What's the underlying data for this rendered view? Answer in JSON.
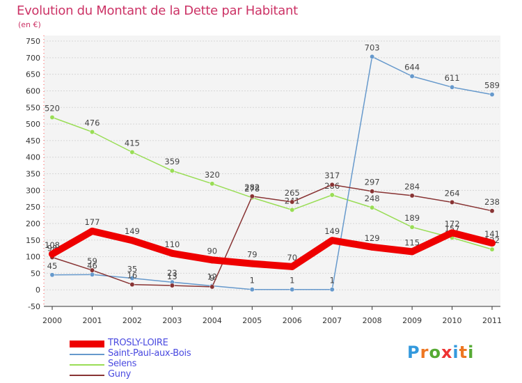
{
  "chart_data": {
    "type": "line",
    "title": "Evolution du Montant de la Dette par Habitant",
    "subtitle": "(en €)",
    "xlabel": "",
    "ylabel": "",
    "categories": [
      "2000",
      "2001",
      "2002",
      "2003",
      "2004",
      "2005",
      "2006",
      "2007",
      "2008",
      "2009",
      "2010",
      "2011"
    ],
    "yticks": [
      750,
      700,
      650,
      600,
      550,
      500,
      450,
      400,
      350,
      300,
      250,
      200,
      150,
      100,
      50,
      0,
      -50
    ],
    "ylim": [
      -50,
      750
    ],
    "grid": "horizontal",
    "legend_position": "bottom-left",
    "series": [
      {
        "name": "Selens",
        "color": "#99dd55",
        "values": [
          520,
          476,
          415,
          359,
          320,
          278,
          241,
          286,
          248,
          189,
          157,
          122
        ],
        "labels": [
          "520",
          "476",
          "415",
          "359",
          "320",
          "278",
          "241",
          "286",
          "248",
          "189",
          "157",
          "122"
        ]
      },
      {
        "name": "Saint-Paul-aux-Bois",
        "color": "#6699cc",
        "values": [
          45,
          46,
          35,
          23,
          12,
          1,
          1,
          1,
          703,
          644,
          611,
          589
        ],
        "labels": [
          "45",
          "46",
          "35",
          "23",
          "12",
          "1",
          "1",
          "1",
          "703",
          "644",
          "611",
          "589"
        ]
      },
      {
        "name": "Guny",
        "color": "#883333",
        "values": [
          98,
          59,
          16,
          13,
          9,
          282,
          265,
          317,
          297,
          284,
          264,
          238
        ],
        "labels": [
          "98",
          "59",
          "16",
          "13",
          "9",
          "282",
          "265",
          "317",
          "297",
          "284",
          "264",
          "238"
        ]
      },
      {
        "name": "TROSLY-LOIRE",
        "color": "#ee0000",
        "values": [
          108,
          177,
          149,
          110,
          90,
          79,
          70,
          149,
          129,
          115,
          172,
          141
        ],
        "labels": [
          "108",
          "177",
          "149",
          "110",
          "90",
          "79",
          "70",
          "149",
          "129",
          "115",
          "172",
          "141"
        ]
      }
    ]
  },
  "legend": {
    "items": [
      {
        "name": "TROSLY-LOIRE",
        "color": "#ee0000",
        "thickness": 10
      },
      {
        "name": "Saint-Paul-aux-Bois",
        "color": "#6699cc",
        "thickness": 2
      },
      {
        "name": "Selens",
        "color": "#99dd55",
        "thickness": 2
      },
      {
        "name": "Guny",
        "color": "#883333",
        "thickness": 2
      }
    ]
  },
  "logo": {
    "letters": [
      "P",
      "r",
      "o",
      "x",
      "i",
      "t",
      "i"
    ],
    "colors": [
      "#3399dd",
      "#ee7722",
      "#55aa33",
      "#ee3333",
      "#3399dd",
      "#ee7722",
      "#55aa33"
    ]
  }
}
